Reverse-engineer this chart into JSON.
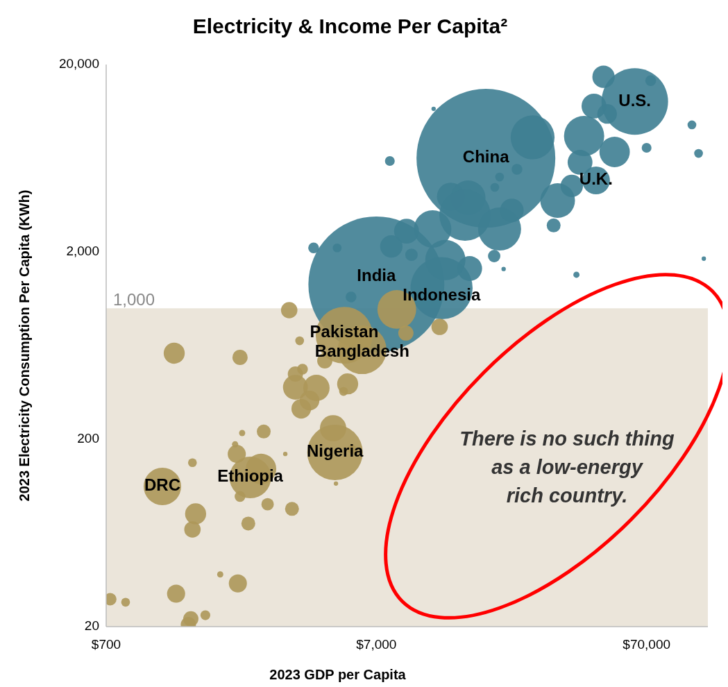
{
  "chart_data": {
    "type": "bubble",
    "title": "Electricity & Income Per Capita²",
    "xlabel": "2023 GDP per Capita",
    "ylabel": "2023 Electricity Consumption  Per Capita (KWh)",
    "log": "xy",
    "xlim": [
      700,
      118000
    ],
    "ylim": [
      20,
      20000
    ],
    "xticks": [
      {
        "value": 700,
        "label": "$700"
      },
      {
        "value": 7000,
        "label": "$7,000"
      },
      {
        "value": 70000,
        "label": "$70,000"
      }
    ],
    "yticks": [
      20,
      200,
      {
        "value": 2000,
        "label": "2,000"
      },
      {
        "value": 20000,
        "label": "20,000"
      }
    ],
    "grid": false,
    "bands": [
      {
        "axis": "y",
        "from": 20,
        "to": 1000,
        "label": "1,000",
        "color": "#ebe5da"
      }
    ],
    "series": [
      {
        "color": "#3e7e92",
        "x": [
          17800,
          7000,
          12200,
          63300,
          26500,
          45500,
          48500,
          44700,
          50000,
          41100,
          53300,
          39700,
          32800,
          37000,
          13200,
          15300,
          14900,
          20000,
          22200,
          11300,
          9050,
          7950,
          12600,
          15500,
          9440,
          19100,
          7850,
          5010,
          4100,
          5640,
          103000,
          109000,
          70000,
          72500,
          114000,
          38500,
          31700,
          20000,
          19200,
          23200,
          11400,
          20700
        ],
        "values": [
          6320,
          1340,
          1280,
          12700,
          8170,
          4810,
          17200,
          12000,
          10900,
          8310,
          6830,
          6010,
          3760,
          4500,
          3950,
          3890,
          3140,
          2650,
          3330,
          2650,
          2580,
          2140,
          1810,
          1630,
          1930,
          1900,
          6110,
          2100,
          2100,
          1150,
          9530,
          6710,
          7190,
          16400,
          1840,
          1510,
          2770,
          5020,
          4420,
          5520,
          11600,
          1620
        ],
        "sizes": [
          1,
          0.96,
          0.2,
          0.23,
          0.1,
          0.04,
          0.026,
          0.032,
          0.02,
          0.084,
          0.048,
          0.032,
          0.0625,
          0.026,
          0.04,
          0.0625,
          0.137,
          0.096,
          0.029,
          0.073,
          0.032,
          0.026,
          0.084,
          0.032,
          0.008,
          0.008,
          0.005,
          0.004,
          0.006,
          0.006,
          0.004,
          0.004,
          0.005,
          0.006,
          0.001,
          0.002,
          0.01,
          0.004,
          0.004,
          0.006,
          0.001,
          0.001
        ]
      },
      {
        "color": "#ad9759",
        "x": [
          8330,
          5320,
          6200,
          3330,
          1250,
          2190,
          3640,
          4510,
          12000,
          9000,
          5480,
          5290,
          3730,
          3510,
          3510,
          4200,
          3960,
          3690,
          4840,
          4920,
          2680,
          2230,
          2130,
          2100,
          1460,
          1130,
          2390,
          2620,
          2190,
          2770,
          3410,
          1500,
          1460,
          2350,
          2150,
          1270,
          1850,
          826,
          725,
          1440,
          1630,
          1410,
          3220,
          4960,
          5680
        ],
        "values": [
          986,
          718,
          601,
          977,
          576,
          547,
          671,
          524,
          796,
          738,
          395,
          360,
          473,
          446,
          379,
          376,
          322,
          291,
          229,
          170,
          220,
          216,
          167,
          188,
          150,
          112,
          125,
          139,
          99,
          90,
          85,
          80,
          66,
          71,
          34,
          30,
          38,
          27,
          28,
          22,
          23,
          20.5,
          167,
          116,
          177
        ],
        "sizes": [
          0.078,
          0.168,
          0.123,
          0.014,
          0.023,
          0.012,
          0.004,
          0.012,
          0.014,
          0.012,
          0.023,
          0.004,
          0.006,
          0.012,
          0.032,
          0.036,
          0.02,
          0.02,
          0.036,
          0.16,
          0.01,
          0.002,
          0.017,
          0.002,
          0.004,
          0.073,
          0.09,
          0.048,
          0.006,
          0.008,
          0.01,
          0.023,
          0.014,
          0.01,
          0.017,
          0.017,
          0.002,
          0.004,
          0.008,
          0.012,
          0.005,
          0.012,
          0.001,
          0.001,
          0.004
        ]
      }
    ],
    "annotations": [
      {
        "text": "China",
        "x": 17800,
        "y": 6320
      },
      {
        "text": "U.S.",
        "x": 63300,
        "y": 12700
      },
      {
        "text": "U.K.",
        "x": 45500,
        "y": 4810
      },
      {
        "text": "India",
        "x": 7000,
        "y": 1340
      },
      {
        "text": "Indonesia",
        "x": 12200,
        "y": 1280
      },
      {
        "text": "Pakistan",
        "x": 5320,
        "y": 718
      },
      {
        "text": "Bangladesh",
        "x": 6200,
        "y": 601
      },
      {
        "text": "Nigeria",
        "x": 4920,
        "y": 170
      },
      {
        "text": "Ethiopia",
        "x": 2390,
        "y": 125
      },
      {
        "text": "DRC",
        "x": 1130,
        "y": 112
      },
      "There is no such thing as a low-energy rich country."
    ]
  }
}
